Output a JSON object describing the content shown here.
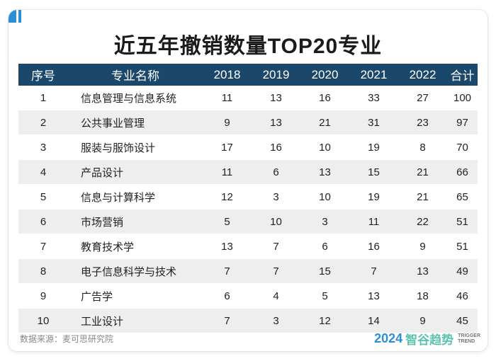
{
  "title": "近五年撤销数量TOP20专业",
  "headers": [
    "序号",
    "专业名称",
    "2018",
    "2019",
    "2020",
    "2021",
    "2022",
    "合计"
  ],
  "rows": [
    {
      "rank": "1",
      "name": "信息管理与信息系统",
      "values": [
        "11",
        "13",
        "16",
        "33",
        "27",
        "100"
      ]
    },
    {
      "rank": "2",
      "name": "公共事业管理",
      "values": [
        "9",
        "13",
        "21",
        "31",
        "23",
        "97"
      ]
    },
    {
      "rank": "3",
      "name": "服装与服饰设计",
      "values": [
        "17",
        "16",
        "10",
        "19",
        "8",
        "70"
      ]
    },
    {
      "rank": "4",
      "name": "产品设计",
      "values": [
        "11",
        "6",
        "13",
        "15",
        "21",
        "66"
      ]
    },
    {
      "rank": "5",
      "name": "信息与计算科学",
      "values": [
        "12",
        "3",
        "10",
        "19",
        "21",
        "65"
      ]
    },
    {
      "rank": "6",
      "name": "市场营销",
      "values": [
        "5",
        "10",
        "3",
        "11",
        "22",
        "51"
      ]
    },
    {
      "rank": "7",
      "name": "教育技术学",
      "values": [
        "13",
        "7",
        "6",
        "16",
        "9",
        "51"
      ]
    },
    {
      "rank": "8",
      "name": "电子信息科学与技术",
      "values": [
        "7",
        "7",
        "15",
        "7",
        "13",
        "49"
      ]
    },
    {
      "rank": "9",
      "name": "广告学",
      "values": [
        "6",
        "4",
        "5",
        "13",
        "18",
        "46"
      ]
    },
    {
      "rank": "10",
      "name": "工业设计",
      "values": [
        "7",
        "3",
        "12",
        "14",
        "9",
        "45"
      ]
    }
  ],
  "source": "数据来源：麦可思研究院",
  "brand": {
    "year": "2024",
    "name": "智谷趋势",
    "sub_line1": "TRIGGER",
    "sub_line2": "TREND"
  },
  "colors": {
    "header_bg": "#1b476b",
    "stripe": "#eeeeee",
    "brand_blue": "#2b8fd6",
    "brand_green": "#5cc3ad"
  }
}
